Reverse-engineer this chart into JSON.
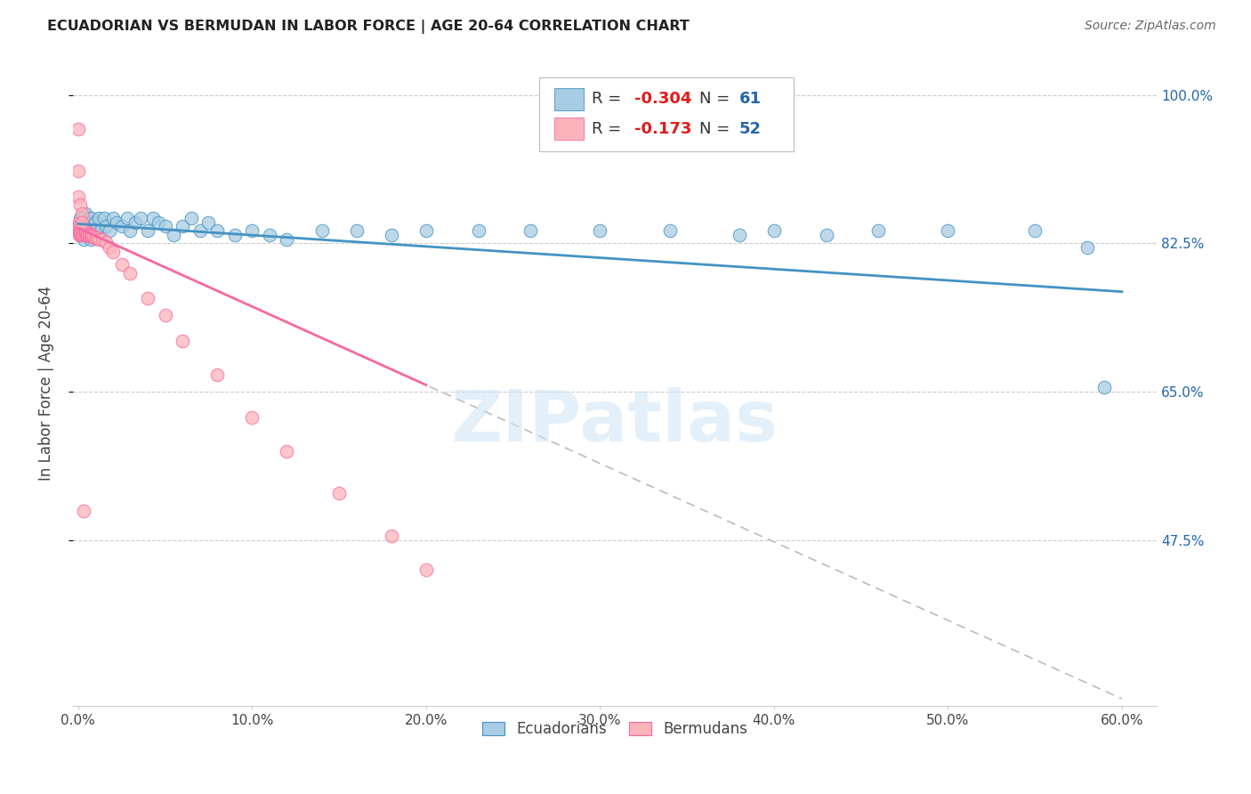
{
  "title": "ECUADORIAN VS BERMUDAN IN LABOR FORCE | AGE 20-64 CORRELATION CHART",
  "source": "Source: ZipAtlas.com",
  "ylabel": "In Labor Force | Age 20-64",
  "xlim": [
    -0.003,
    0.62
  ],
  "ylim": [
    0.28,
    1.04
  ],
  "ytick_positions": [
    0.475,
    0.65,
    0.825,
    1.0
  ],
  "ytick_labels": [
    "47.5%",
    "65.0%",
    "82.5%",
    "100.0%"
  ],
  "xtick_positions": [
    0.0,
    0.1,
    0.2,
    0.3,
    0.4,
    0.5,
    0.6
  ],
  "xtick_labels": [
    "0.0%",
    "10.0%",
    "20.0%",
    "30.0%",
    "40.0%",
    "50.0%",
    "60.0%"
  ],
  "grid_color": "#cccccc",
  "background_color": "#ffffff",
  "ecuadorian_R": "-0.304",
  "ecuadorian_N": "61",
  "bermudan_R": "-0.173",
  "bermudan_N": "52",
  "blue_fill": "#a8cce4",
  "blue_edge": "#4393c3",
  "pink_fill": "#fbb4b9",
  "pink_edge": "#f768a1",
  "blue_line_color": "#4393c3",
  "pink_line_color": "#f768a1",
  "dashed_line_color": "#bbbbbb",
  "legend_R_color": "#e31a1c",
  "legend_N_color": "#2166ac",
  "watermark": "ZIPatlas",
  "legend_ecuadorians": "Ecuadorians",
  "legend_bermudans": "Bermudans",
  "ecu_x": [
    0.001,
    0.001,
    0.002,
    0.002,
    0.003,
    0.003,
    0.004,
    0.004,
    0.005,
    0.005,
    0.006,
    0.006,
    0.007,
    0.007,
    0.008,
    0.008,
    0.009,
    0.01,
    0.01,
    0.012,
    0.013,
    0.015,
    0.016,
    0.018,
    0.02,
    0.022,
    0.025,
    0.028,
    0.03,
    0.033,
    0.036,
    0.04,
    0.043,
    0.046,
    0.05,
    0.055,
    0.06,
    0.065,
    0.07,
    0.075,
    0.08,
    0.09,
    0.1,
    0.11,
    0.12,
    0.14,
    0.16,
    0.18,
    0.2,
    0.23,
    0.26,
    0.3,
    0.34,
    0.38,
    0.4,
    0.43,
    0.46,
    0.5,
    0.55,
    0.58,
    0.59
  ],
  "ecu_y": [
    0.855,
    0.835,
    0.85,
    0.84,
    0.855,
    0.83,
    0.84,
    0.86,
    0.835,
    0.85,
    0.84,
    0.855,
    0.83,
    0.845,
    0.855,
    0.84,
    0.835,
    0.85,
    0.84,
    0.855,
    0.84,
    0.855,
    0.845,
    0.84,
    0.855,
    0.85,
    0.845,
    0.855,
    0.84,
    0.85,
    0.855,
    0.84,
    0.855,
    0.85,
    0.845,
    0.835,
    0.845,
    0.855,
    0.84,
    0.85,
    0.84,
    0.835,
    0.84,
    0.835,
    0.83,
    0.84,
    0.84,
    0.835,
    0.84,
    0.84,
    0.84,
    0.84,
    0.84,
    0.835,
    0.84,
    0.835,
    0.84,
    0.84,
    0.84,
    0.82,
    0.655
  ],
  "berm_x": [
    0.0002,
    0.0003,
    0.0004,
    0.0005,
    0.0006,
    0.0007,
    0.0008,
    0.0009,
    0.001,
    0.001,
    0.001,
    0.001,
    0.002,
    0.002,
    0.002,
    0.002,
    0.002,
    0.003,
    0.003,
    0.003,
    0.003,
    0.004,
    0.004,
    0.004,
    0.005,
    0.005,
    0.005,
    0.006,
    0.006,
    0.007,
    0.007,
    0.008,
    0.008,
    0.009,
    0.01,
    0.011,
    0.012,
    0.014,
    0.016,
    0.018,
    0.02,
    0.025,
    0.03,
    0.04,
    0.05,
    0.06,
    0.08,
    0.1,
    0.12,
    0.15,
    0.18,
    0.2
  ],
  "berm_y": [
    0.84,
    0.845,
    0.85,
    0.84,
    0.845,
    0.835,
    0.84,
    0.838,
    0.84,
    0.842,
    0.836,
    0.838,
    0.84,
    0.836,
    0.838,
    0.835,
    0.84,
    0.838,
    0.835,
    0.84,
    0.836,
    0.836,
    0.838,
    0.84,
    0.836,
    0.838,
    0.835,
    0.834,
    0.836,
    0.836,
    0.835,
    0.833,
    0.834,
    0.833,
    0.831,
    0.832,
    0.83,
    0.83,
    0.826,
    0.82,
    0.815,
    0.8,
    0.79,
    0.76,
    0.74,
    0.71,
    0.67,
    0.62,
    0.58,
    0.53,
    0.48,
    0.44
  ],
  "berm_outlier_x": [
    0.0002,
    0.0003,
    0.0003,
    0.001,
    0.002,
    0.002,
    0.003
  ],
  "berm_outlier_y": [
    0.96,
    0.91,
    0.88,
    0.87,
    0.86,
    0.85,
    0.51
  ],
  "ecu_line_x0": 0.0,
  "ecu_line_x1": 0.6,
  "ecu_line_y0": 0.848,
  "ecu_line_y1": 0.768,
  "pink_line_x0": 0.0,
  "pink_line_x1": 0.2,
  "pink_line_y0": 0.843,
  "pink_line_y1": 0.658,
  "dash_line_x0": 0.0,
  "dash_line_x1": 0.6,
  "dash_line_y0": 0.843,
  "dash_line_y1": 0.288
}
